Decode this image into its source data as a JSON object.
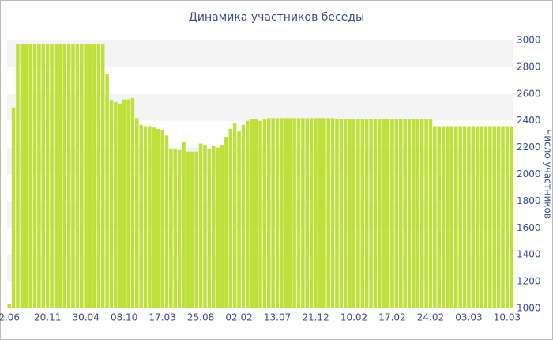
{
  "chart_data": {
    "type": "bar",
    "title": "Динамика участников беседы",
    "y_label": "Число участников",
    "color": "#bfe03a",
    "grid": true,
    "ylim": [
      1000,
      3000
    ],
    "yticks": [
      1000,
      1200,
      1400,
      1600,
      1800,
      2000,
      2200,
      2400,
      2600,
      2800,
      3000
    ],
    "categories": [
      "2.06",
      null,
      null,
      null,
      null,
      null,
      null,
      null,
      null,
      "20.11",
      null,
      null,
      null,
      null,
      null,
      null,
      null,
      null,
      "30.04",
      null,
      null,
      null,
      null,
      null,
      null,
      null,
      null,
      "08.10",
      null,
      null,
      null,
      null,
      null,
      null,
      null,
      null,
      "17.03",
      null,
      null,
      null,
      null,
      null,
      null,
      null,
      null,
      "25.08",
      null,
      null,
      null,
      null,
      null,
      null,
      null,
      null,
      "02.02",
      null,
      null,
      null,
      null,
      null,
      null,
      null,
      null,
      "13.07",
      null,
      null,
      null,
      null,
      null,
      null,
      null,
      null,
      "21.12",
      null,
      null,
      null,
      null,
      null,
      null,
      null,
      null,
      "10.02",
      null,
      null,
      null,
      null,
      null,
      null,
      null,
      null,
      "17.02",
      null,
      null,
      null,
      null,
      null,
      null,
      null,
      null,
      "24.02",
      null,
      null,
      null,
      null,
      null,
      null,
      null,
      null,
      "03.03",
      null,
      null,
      null,
      null,
      null,
      null,
      null,
      null,
      "10.03",
      null
    ],
    "values": [
      1030,
      2500,
      2970,
      2970,
      2970,
      2970,
      2970,
      2970,
      2970,
      2970,
      2970,
      2970,
      2970,
      2970,
      2970,
      2970,
      2970,
      2970,
      2970,
      2970,
      2970,
      2970,
      2970,
      2750,
      2550,
      2540,
      2530,
      2560,
      2560,
      2570,
      2420,
      2370,
      2360,
      2360,
      2350,
      2340,
      2330,
      2290,
      2190,
      2190,
      2180,
      2240,
      2170,
      2170,
      2170,
      2230,
      2220,
      2190,
      2210,
      2200,
      2220,
      2280,
      2340,
      2380,
      2320,
      2370,
      2400,
      2410,
      2410,
      2400,
      2410,
      2420,
      2420,
      2420,
      2420,
      2420,
      2420,
      2420,
      2420,
      2420,
      2420,
      2420,
      2420,
      2420,
      2420,
      2420,
      2420,
      2410,
      2410,
      2410,
      2410,
      2410,
      2410,
      2410,
      2410,
      2410,
      2410,
      2410,
      2410,
      2410,
      2410,
      2410,
      2410,
      2410,
      2410,
      2410,
      2410,
      2410,
      2410,
      2410,
      2360,
      2360,
      2360,
      2360,
      2360,
      2360,
      2360,
      2360,
      2360,
      2360,
      2360,
      2360,
      2360,
      2360,
      2360,
      2360,
      2360,
      2360,
      2360
    ]
  }
}
